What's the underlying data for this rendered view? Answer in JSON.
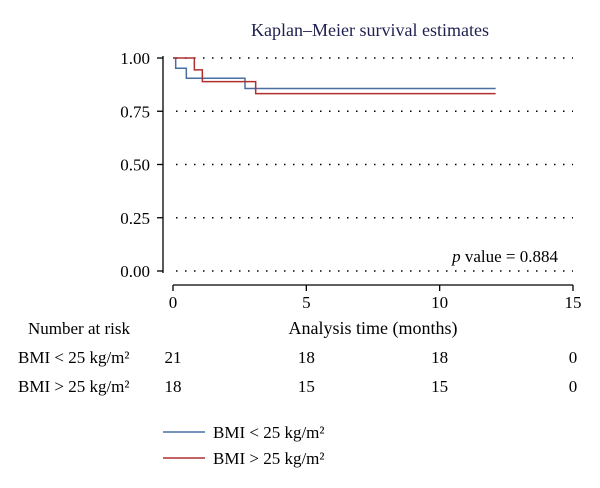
{
  "chart_data": {
    "type": "line",
    "step": true,
    "title": "Kaplan–Meier survival estimates",
    "xlabel": "Analysis time (months)",
    "ylabel": "",
    "xlim": [
      0,
      15
    ],
    "ylim": [
      0,
      1
    ],
    "x_ticks": [
      0,
      5,
      10,
      15
    ],
    "y_ticks": [
      "0.00",
      "0.25",
      "0.50",
      "0.75",
      "1.00"
    ],
    "y_tick_values": [
      0,
      0.25,
      0.5,
      0.75,
      1.0
    ],
    "grid": "horizontal dotted",
    "annotation": {
      "p_label": "p",
      "text": " value = 0.884"
    },
    "series": [
      {
        "name": "BMI < 25 kg/m²",
        "color": "#4a6fa5",
        "points": [
          [
            0,
            1.0
          ],
          [
            0.1,
            0.952
          ],
          [
            0.5,
            0.905
          ],
          [
            2.7,
            0.857
          ],
          [
            12.1,
            0.857
          ]
        ]
      },
      {
        "name": "BMI > 25 kg/m²",
        "color": "#b03030",
        "points": [
          [
            0,
            1.0
          ],
          [
            0.8,
            0.944
          ],
          [
            1.1,
            0.889
          ],
          [
            3.1,
            0.833
          ],
          [
            12.1,
            0.833
          ]
        ]
      }
    ],
    "risk_table": {
      "header": "Number at risk",
      "times": [
        0,
        5,
        10,
        15
      ],
      "rows": [
        {
          "label": "BMI < 25 kg/m²",
          "counts": [
            "21",
            "18",
            "18",
            "0"
          ]
        },
        {
          "label": "BMI > 25 kg/m²",
          "counts": [
            "18",
            "15",
            "15",
            "0"
          ]
        }
      ]
    },
    "legend": {
      "position": "bottom-left",
      "entries": [
        {
          "label": "BMI < 25 kg/m²",
          "color": "#4a6fa5"
        },
        {
          "label": "BMI > 25 kg/m²",
          "color": "#b03030"
        }
      ]
    }
  }
}
